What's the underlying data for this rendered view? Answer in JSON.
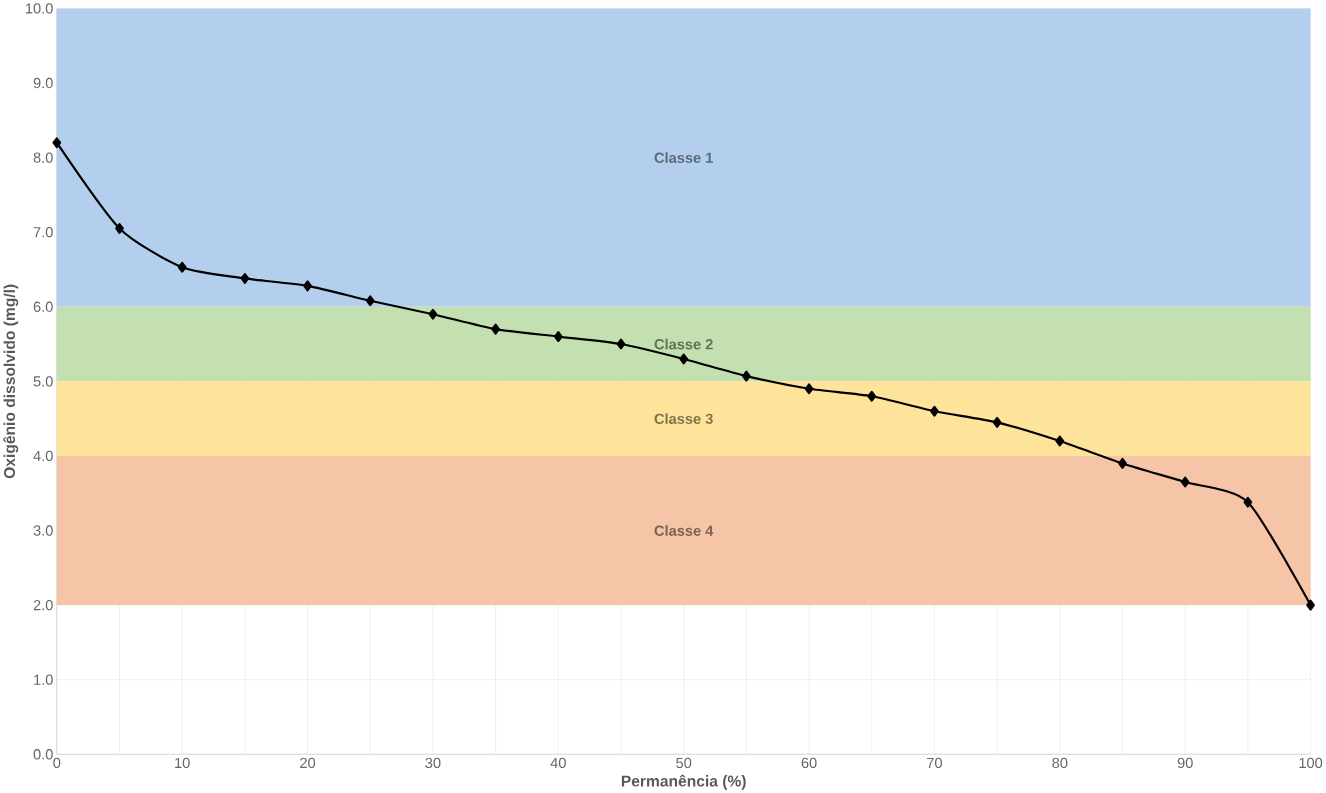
{
  "chart_data": {
    "type": "line",
    "xlabel": "Permanência (%)",
    "ylabel": "Oxigênio dissolvido (mg/l)",
    "x": [
      0,
      5,
      10,
      15,
      20,
      25,
      30,
      35,
      40,
      45,
      50,
      55,
      60,
      65,
      70,
      75,
      80,
      85,
      90,
      95,
      100
    ],
    "series": [
      {
        "color": "#000000",
        "values": [
          8.2,
          7.05,
          6.53,
          6.38,
          6.28,
          6.08,
          5.9,
          5.7,
          5.6,
          5.5,
          5.3,
          5.07,
          4.9,
          4.8,
          4.6,
          4.45,
          4.2,
          3.9,
          3.65,
          3.38,
          2.0
        ]
      }
    ],
    "xlim": [
      0,
      100
    ],
    "ylim": [
      0,
      10
    ],
    "xticks": [
      0,
      {
        "value": 5,
        "label": null
      },
      10,
      {
        "value": 15,
        "label": null
      },
      20,
      {
        "value": 25,
        "label": null
      },
      30,
      {
        "value": 35,
        "label": null
      },
      40,
      {
        "value": 45,
        "label": null
      },
      50,
      {
        "value": 55,
        "label": null
      },
      60,
      {
        "value": 65,
        "label": null
      },
      70,
      {
        "value": 75,
        "label": null
      },
      80,
      {
        "value": 85,
        "label": null
      },
      90,
      {
        "value": 95,
        "label": null
      },
      100
    ],
    "yticks": [
      {
        "value": 0,
        "label": "0.0"
      },
      {
        "value": 1,
        "label": "1.0"
      },
      {
        "value": 2,
        "label": "2.0"
      },
      {
        "value": 3,
        "label": "3.0"
      },
      {
        "value": 4,
        "label": "4.0"
      },
      {
        "value": 5,
        "label": "5.0"
      },
      {
        "value": 6,
        "label": "6.0"
      },
      {
        "value": 7,
        "label": "7.0"
      },
      {
        "value": 8,
        "label": "8.0"
      },
      {
        "value": 9,
        "label": "9.0"
      },
      {
        "value": 10,
        "label": "10.0"
      }
    ],
    "bands": [
      {
        "axis": "y",
        "from": 6,
        "to": 10,
        "label": "Classe 1",
        "color": "#b4cfee"
      },
      {
        "axis": "y",
        "from": 5,
        "to": 6,
        "label": "Classe 2",
        "color": "#c4e0b0"
      },
      {
        "axis": "y",
        "from": 4,
        "to": 5,
        "label": "Classe 3",
        "color": "#fde49a"
      },
      {
        "axis": "y",
        "from": 2,
        "to": 4,
        "label": "Classe 4",
        "color": "#f6c4a6"
      }
    ],
    "grid": true,
    "marker": "diamond",
    "line_style": "solid"
  }
}
